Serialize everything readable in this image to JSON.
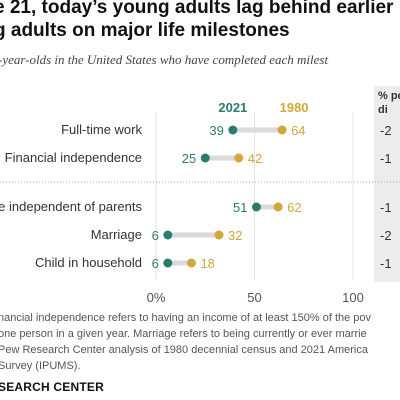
{
  "title": "e 21, today’s young adults lag behind earlier\ng adults on major life milestones",
  "subtitle": "-year-olds in the United States who have completed each milest",
  "chart_data": {
    "type": "dot",
    "categories": [
      "Full-time work",
      "Financial independence",
      "me independent of parents",
      "Marriage",
      "Child in household"
    ],
    "series": [
      {
        "name": "2021",
        "values": [
          39,
          25,
          51,
          6,
          6
        ],
        "color": "#2e7b6e"
      },
      {
        "name": "1980",
        "values": [
          64,
          42,
          62,
          32,
          18
        ],
        "color": "#d1a83a"
      }
    ],
    "ticks": [
      "0%",
      "50",
      "100"
    ],
    "xlim": [
      0,
      100
    ],
    "right_column_header": "% po\ndi",
    "right_column_values": [
      "-2",
      "-1",
      "-1",
      "-2",
      "-1"
    ]
  },
  "notes": [
    "nancial independence refers to having an income of at least 150% of the pov",
    "one person in a given year. Marriage refers to being currently or ever marrie",
    "Pew Research Center analysis of 1980 decennial census and 2021 America",
    "Survey (IPUMS)."
  ],
  "brand": "SEARCH CENTER"
}
